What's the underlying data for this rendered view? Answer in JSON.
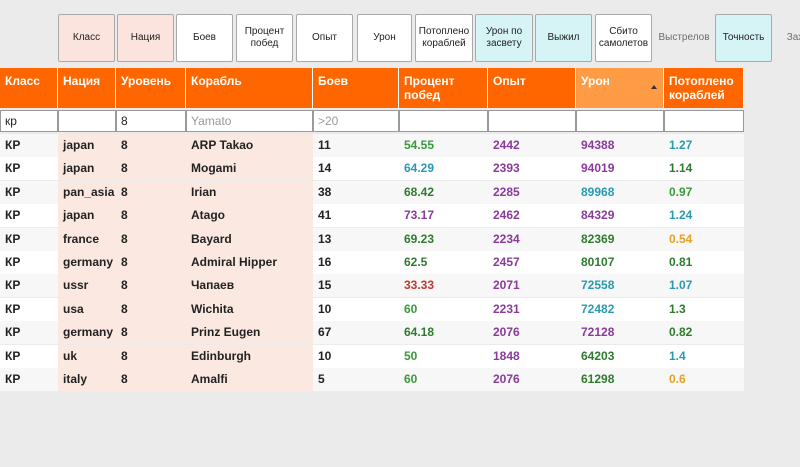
{
  "toolbar": {
    "buttons": [
      {
        "label": "Класс",
        "bg": "#fbe3de"
      },
      {
        "label": "Нация",
        "bg": "#fbe3de"
      },
      {
        "label": "Боев",
        "bg": "#ffffff"
      },
      {
        "label": "Процент побед",
        "bg": "#ffffff"
      },
      {
        "label": "Опыт",
        "bg": "#ffffff"
      },
      {
        "label": "Урон",
        "bg": "#ffffff"
      },
      {
        "label": "Потоплено кораблей",
        "bg": "#ffffff"
      },
      {
        "label": "Урон по засвету",
        "bg": "#d6f4f5"
      },
      {
        "label": "Выжил",
        "bg": "#d6f4f5"
      },
      {
        "label": "Сбито самолетов",
        "bg": "#ffffff"
      },
      {
        "label": "Выстрелов",
        "bg": "transparent"
      },
      {
        "label": "Точность",
        "bg": "#d6f4f5"
      },
      {
        "label": "Зах",
        "bg": "transparent"
      }
    ]
  },
  "table": {
    "headers": [
      "Класс",
      "Нация",
      "Уровень",
      "Корабль",
      "Боев",
      "Процент побед",
      "Опыт",
      "Урон",
      "Потоплено кораблей"
    ],
    "sorted_column": "Урон",
    "filters": {
      "class": "кр",
      "nation": "",
      "tier": "8",
      "ship_placeholder": "Yamato",
      "battles_placeholder": ">20",
      "winrate": "",
      "exp": "",
      "damage": "",
      "kills": ""
    },
    "rows": [
      {
        "cls": "КР",
        "nation": "japan",
        "tier": "8",
        "ship": "ARP Takao",
        "battles": "11",
        "winrate": "54.55",
        "exp": "2442",
        "damage": "94388",
        "kills": "1.27",
        "wr_color": "#3a9a3a",
        "dmg_color": "#8a3a9a",
        "kills_color": "#2a9ab0"
      },
      {
        "cls": "КР",
        "nation": "japan",
        "tier": "8",
        "ship": "Mogami",
        "battles": "14",
        "winrate": "64.29",
        "exp": "2393",
        "damage": "94019",
        "kills": "1.14",
        "wr_color": "#2a9ab0",
        "dmg_color": "#8a3a9a",
        "kills_color": "#2f7a2f"
      },
      {
        "cls": "КР",
        "nation": "pan_asia",
        "tier": "8",
        "ship": "Irian",
        "battles": "38",
        "winrate": "68.42",
        "exp": "2285",
        "damage": "89968",
        "kills": "0.97",
        "wr_color": "#2f7a2f",
        "dmg_color": "#2a9ab0",
        "kills_color": "#3a9a3a"
      },
      {
        "cls": "КР",
        "nation": "japan",
        "tier": "8",
        "ship": "Atago",
        "battles": "41",
        "winrate": "73.17",
        "exp": "2462",
        "damage": "84329",
        "kills": "1.24",
        "wr_color": "#8a3a9a",
        "dmg_color": "#8a3a9a",
        "kills_color": "#2a9ab0"
      },
      {
        "cls": "КР",
        "nation": "france",
        "tier": "8",
        "ship": "Bayard",
        "battles": "13",
        "winrate": "69.23",
        "exp": "2234",
        "damage": "82369",
        "kills": "0.54",
        "wr_color": "#2f7a2f",
        "dmg_color": "#2f7a2f",
        "kills_color": "#e8a020"
      },
      {
        "cls": "КР",
        "nation": "germany",
        "tier": "8",
        "ship": "Admiral Hipper",
        "battles": "16",
        "winrate": "62.5",
        "exp": "2457",
        "damage": "80107",
        "kills": "0.81",
        "wr_color": "#2f7a2f",
        "dmg_color": "#2f7a2f",
        "kills_color": "#2f7a2f"
      },
      {
        "cls": "КР",
        "nation": "ussr",
        "tier": "8",
        "ship": "Чапаев",
        "battles": "15",
        "winrate": "33.33",
        "exp": "2071",
        "damage": "72558",
        "kills": "1.07",
        "wr_color": "#c0392b",
        "dmg_color": "#2a9ab0",
        "kills_color": "#2a9ab0"
      },
      {
        "cls": "КР",
        "nation": "usa",
        "tier": "8",
        "ship": "Wichita",
        "battles": "10",
        "winrate": "60",
        "exp": "2231",
        "damage": "72482",
        "kills": "1.3",
        "wr_color": "#3a9a3a",
        "dmg_color": "#2a9ab0",
        "kills_color": "#2f7a2f"
      },
      {
        "cls": "КР",
        "nation": "germany",
        "tier": "8",
        "ship": "Prinz Eugen",
        "battles": "67",
        "winrate": "64.18",
        "exp": "2076",
        "damage": "72128",
        "kills": "0.82",
        "wr_color": "#2f7a2f",
        "dmg_color": "#8a3a9a",
        "kills_color": "#2f7a2f"
      },
      {
        "cls": "КР",
        "nation": "uk",
        "tier": "8",
        "ship": "Edinburgh",
        "battles": "10",
        "winrate": "50",
        "exp": "1848",
        "damage": "64203",
        "kills": "1.4",
        "wr_color": "#3a9a3a",
        "dmg_color": "#2f7a2f",
        "kills_color": "#2a9ab0"
      },
      {
        "cls": "КР",
        "nation": "italy",
        "tier": "8",
        "ship": "Amalfi",
        "battles": "5",
        "winrate": "60",
        "exp": "2076",
        "damage": "61298",
        "kills": "0.6",
        "wr_color": "#3a9a3a",
        "dmg_color": "#2f7a2f",
        "kills_color": "#e8a020"
      }
    ]
  },
  "colors": {
    "header_orange": "#ff6600",
    "header_sorted": "#ff9a45",
    "exp_color": "#8a3a9a",
    "tint": "#fbe9e1"
  }
}
